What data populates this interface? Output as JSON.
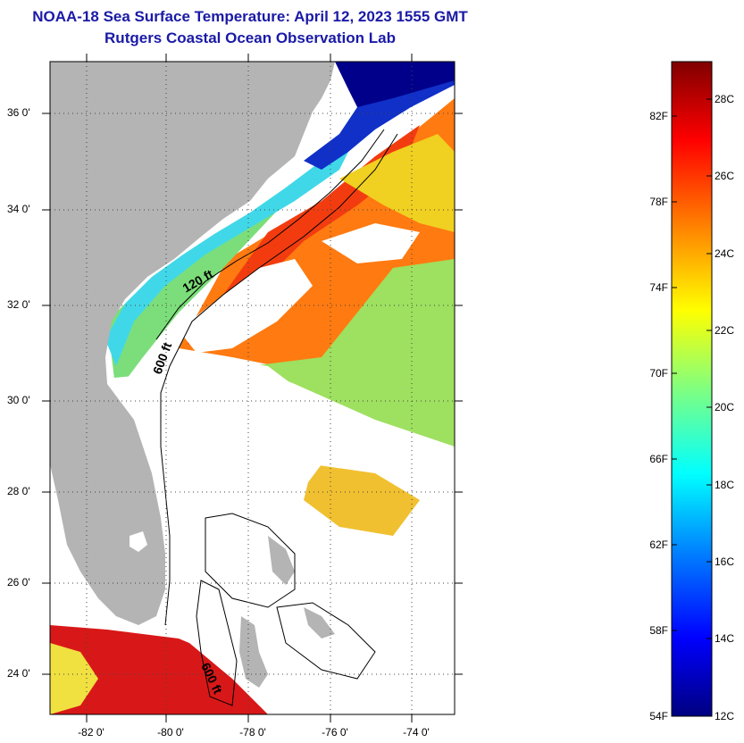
{
  "title": {
    "line1": "NOAA-18 Sea Surface Temperature:  April 12, 2023 1555 GMT",
    "line2": "Rutgers Coastal Ocean Observation Lab"
  },
  "map": {
    "lat_ticks": [
      "36 0'",
      "34 0'",
      "32 0'",
      "30 0'",
      "28 0'",
      "26 0'",
      "24 0'"
    ],
    "lon_ticks": [
      "-82 0'",
      "-80 0'",
      "-78 0'",
      "-76 0'",
      "-74 0'"
    ],
    "contour_labels": [
      "120 ft",
      "600 ft",
      "600 ft"
    ],
    "colors": {
      "land": "#b4b4b4",
      "cloud": "#ffffff",
      "cold": "#00008b",
      "warm": "#e83010"
    }
  },
  "colorbar": {
    "f_labels": [
      "82F",
      "78F",
      "74F",
      "70F",
      "66F",
      "62F",
      "58F",
      "54F"
    ],
    "c_labels": [
      "28C",
      "26C",
      "24C",
      "22C",
      "20C",
      "18C",
      "16C",
      "14C",
      "12C"
    ],
    "colors": [
      "#000080",
      "#0000ff",
      "#0080ff",
      "#00ffff",
      "#80ff80",
      "#ffff00",
      "#ff8000",
      "#ff0000",
      "#800000"
    ]
  }
}
